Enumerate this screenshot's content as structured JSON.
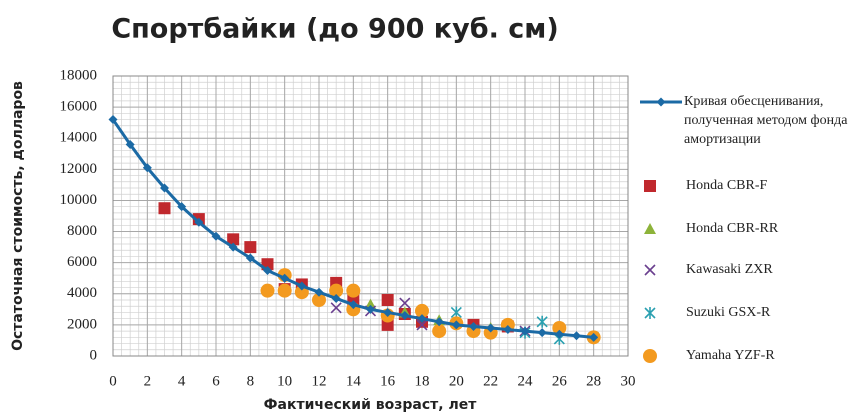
{
  "chart_data": {
    "type": "line",
    "title": "Спортбайки (до 900 куб. см)",
    "xlabel": "Фактический возраст, лет",
    "ylabel": "Остаточная стоимость, долларов",
    "xlim": [
      0,
      30
    ],
    "xticks": [
      0,
      2,
      4,
      6,
      8,
      10,
      12,
      14,
      16,
      18,
      20,
      22,
      24,
      26,
      28,
      30
    ],
    "ylim": [
      0,
      18000
    ],
    "yticks": [
      0,
      2000,
      4000,
      6000,
      8000,
      10000,
      12000,
      14000,
      16000,
      18000
    ],
    "grid": true,
    "legend": "right",
    "series": [
      {
        "name": "Кривая обесценивания, полученная методом фонда амортизации",
        "color": "#1b6aa5",
        "marker": "diamond",
        "line": true,
        "x": [
          0,
          1,
          2,
          3,
          4,
          5,
          6,
          7,
          8,
          9,
          10,
          11,
          12,
          13,
          14,
          15,
          16,
          17,
          18,
          19,
          20,
          21,
          22,
          23,
          24,
          25,
          26,
          27,
          28
        ],
        "values": [
          15200,
          13600,
          12100,
          10800,
          9600,
          8600,
          7700,
          7000,
          6300,
          5500,
          5000,
          4500,
          4100,
          3700,
          3300,
          3000,
          2800,
          2600,
          2400,
          2200,
          2000,
          1900,
          1800,
          1700,
          1600,
          1500,
          1400,
          1300,
          1200
        ]
      },
      {
        "name": "Honda CBR-F",
        "color": "#c0282d",
        "marker": "square",
        "x": [
          3,
          5,
          7,
          8,
          9,
          10,
          11,
          13,
          14,
          16,
          16,
          17,
          18,
          21,
          23
        ],
        "values": [
          9500,
          8800,
          7500,
          7000,
          5900,
          4300,
          4600,
          4700,
          3600,
          3600,
          2000,
          2700,
          2200,
          2000,
          1900
        ]
      },
      {
        "name": "Honda CBR-RR",
        "color": "#8db33a",
        "marker": "triangle",
        "x": [
          15,
          17,
          19,
          22
        ],
        "values": [
          3300,
          2800,
          2300,
          1800
        ]
      },
      {
        "name": "Kawasaki ZXR",
        "color": "#6a3f8f",
        "marker": "x",
        "x": [
          13,
          15,
          17,
          18,
          21,
          24
        ],
        "values": [
          3100,
          2900,
          3400,
          2000,
          1700,
          1600
        ]
      },
      {
        "name": "Suzuki GSX-R",
        "color": "#2aa0b0",
        "marker": "asterisk",
        "x": [
          20,
          24,
          25,
          26,
          28
        ],
        "values": [
          2800,
          1500,
          2200,
          1100,
          1200
        ]
      },
      {
        "name": "Yamaha YZF-R",
        "color": "#f39a1f",
        "marker": "circle",
        "x": [
          9,
          10,
          10,
          11,
          12,
          13,
          14,
          14,
          16,
          18,
          19,
          20,
          21,
          22,
          23,
          26,
          28
        ],
        "values": [
          4200,
          5200,
          4200,
          4100,
          3600,
          4200,
          4200,
          3000,
          2600,
          2900,
          1600,
          2100,
          1600,
          1500,
          2000,
          1800,
          1200
        ]
      }
    ]
  }
}
